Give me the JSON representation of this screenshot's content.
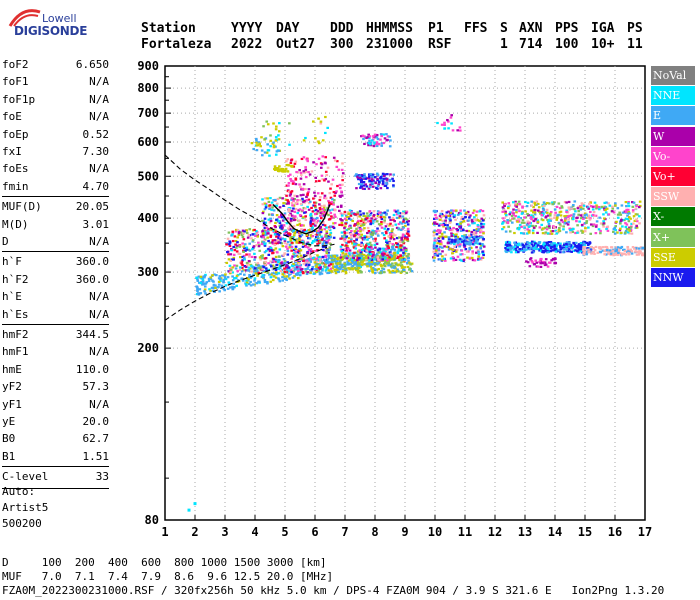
{
  "logo": {
    "line1": "Lowell",
    "line2": "DIGISONDE"
  },
  "header": {
    "labels": [
      "Station",
      "YYYY",
      "DAY",
      "DDD",
      "HHMMSS",
      "P1",
      "FFS",
      "S",
      "AXN",
      "PPS",
      "IGA",
      "PS"
    ],
    "values": [
      "Fortaleza",
      "2022",
      "Out27",
      "300",
      "231000",
      "RSF",
      "",
      "1",
      "714",
      "100",
      "10+",
      "11"
    ]
  },
  "params": [
    {
      "key": "foF2",
      "value": "6.650"
    },
    {
      "key": "foF1",
      "value": "N/A"
    },
    {
      "key": "foF1p",
      "value": "N/A"
    },
    {
      "key": "foE",
      "value": "N/A"
    },
    {
      "key": "foEp",
      "value": "0.52"
    },
    {
      "key": "fxI",
      "value": "7.30"
    },
    {
      "key": "foEs",
      "value": "N/A"
    },
    {
      "key": "fmin",
      "value": "4.70"
    },
    {
      "key": "MUF(D)",
      "value": "20.05"
    },
    {
      "key": "M(D)",
      "value": "3.01"
    },
    {
      "key": "D",
      "value": "N/A"
    },
    {
      "key": "h`F",
      "value": "360.0"
    },
    {
      "key": "h`F2",
      "value": "360.0"
    },
    {
      "key": "h`E",
      "value": "N/A"
    },
    {
      "key": "h`Es",
      "value": "N/A"
    },
    {
      "key": "hmF2",
      "value": "344.5"
    },
    {
      "key": "hmF1",
      "value": "N/A"
    },
    {
      "key": "hmE",
      "value": "110.0"
    },
    {
      "key": "yF2",
      "value": "57.3"
    },
    {
      "key": "yF1",
      "value": "N/A"
    },
    {
      "key": "yE",
      "value": "20.0"
    },
    {
      "key": "B0",
      "value": "62.7"
    },
    {
      "key": "B1",
      "value": "1.51"
    },
    {
      "key": "C-level",
      "value": "33"
    }
  ],
  "auto": {
    "line1": "Auto:",
    "line2": "Artist5",
    "line3": "500200"
  },
  "legend": [
    {
      "label": "NoVal",
      "color": "#808080"
    },
    {
      "label": "NNE",
      "color": "#00e5ff"
    },
    {
      "label": "E",
      "color": "#3fa9f5"
    },
    {
      "label": "W",
      "color": "#aa00aa"
    },
    {
      "label": "Vo-",
      "color": "#ff44cc"
    },
    {
      "label": "Vo+",
      "color": "#ff0033"
    },
    {
      "label": "SSW",
      "color": "#ffb0b0"
    },
    {
      "label": "X-",
      "color": "#007a00"
    },
    {
      "label": "X+",
      "color": "#7fc25a"
    },
    {
      "label": "SSE",
      "color": "#cccc00"
    },
    {
      "label": "NNW",
      "color": "#1a1aee"
    }
  ],
  "footer": {
    "d_row": "D     100  200  400  600  800 1000 1500 3000 [km]",
    "muf_row": "MUF   7.0  7.1  7.4  7.9  8.6  9.6 12.5 20.0 [MHz]",
    "file_row": "FZA0M_2022300231000.RSF / 320fx256h 50 kHz 5.0 km / DPS-4 FZA0M 904 / 3.9 S 321.6 E   Ion2Png 1.3.20"
  },
  "chart_data": {
    "type": "scatter",
    "x_ticks": [
      "1",
      "2",
      "3",
      "4",
      "5",
      "6",
      "7",
      "8",
      "9",
      "10",
      "11",
      "12",
      "13",
      "14",
      "15",
      "16",
      "17"
    ],
    "y_ticks": [
      "80",
      "200",
      "300",
      "400",
      "500",
      "600",
      "700",
      "800",
      "900"
    ],
    "xlim": [
      1,
      17
    ],
    "ylim": [
      80,
      900
    ],
    "y_scale": "log",
    "grid": true,
    "profile_curve": {
      "x": [
        1.0,
        1.5,
        2.0,
        2.5,
        3.0,
        3.5,
        4.0,
        4.5,
        5.0,
        5.5,
        6.0,
        6.3,
        6.5,
        6.65
      ],
      "y": [
        560,
        520,
        490,
        465,
        440,
        418,
        400,
        380,
        365,
        352,
        345,
        345,
        346,
        348
      ]
    },
    "bottom_curve": {
      "x": [
        1.0,
        1.5,
        2.0,
        2.5,
        3.0,
        3.5,
        4.0,
        4.5,
        5.0,
        5.5,
        6.0,
        6.4
      ],
      "y": [
        232,
        245,
        257,
        268,
        278,
        287,
        295,
        303,
        312,
        322,
        334,
        342
      ]
    },
    "trace": {
      "x": [
        4.6,
        4.9,
        5.1,
        5.3,
        5.5,
        5.7,
        5.9,
        6.1,
        6.3,
        6.5
      ],
      "y": [
        430,
        410,
        392,
        378,
        372,
        368,
        372,
        380,
        398,
        430
      ]
    }
  }
}
